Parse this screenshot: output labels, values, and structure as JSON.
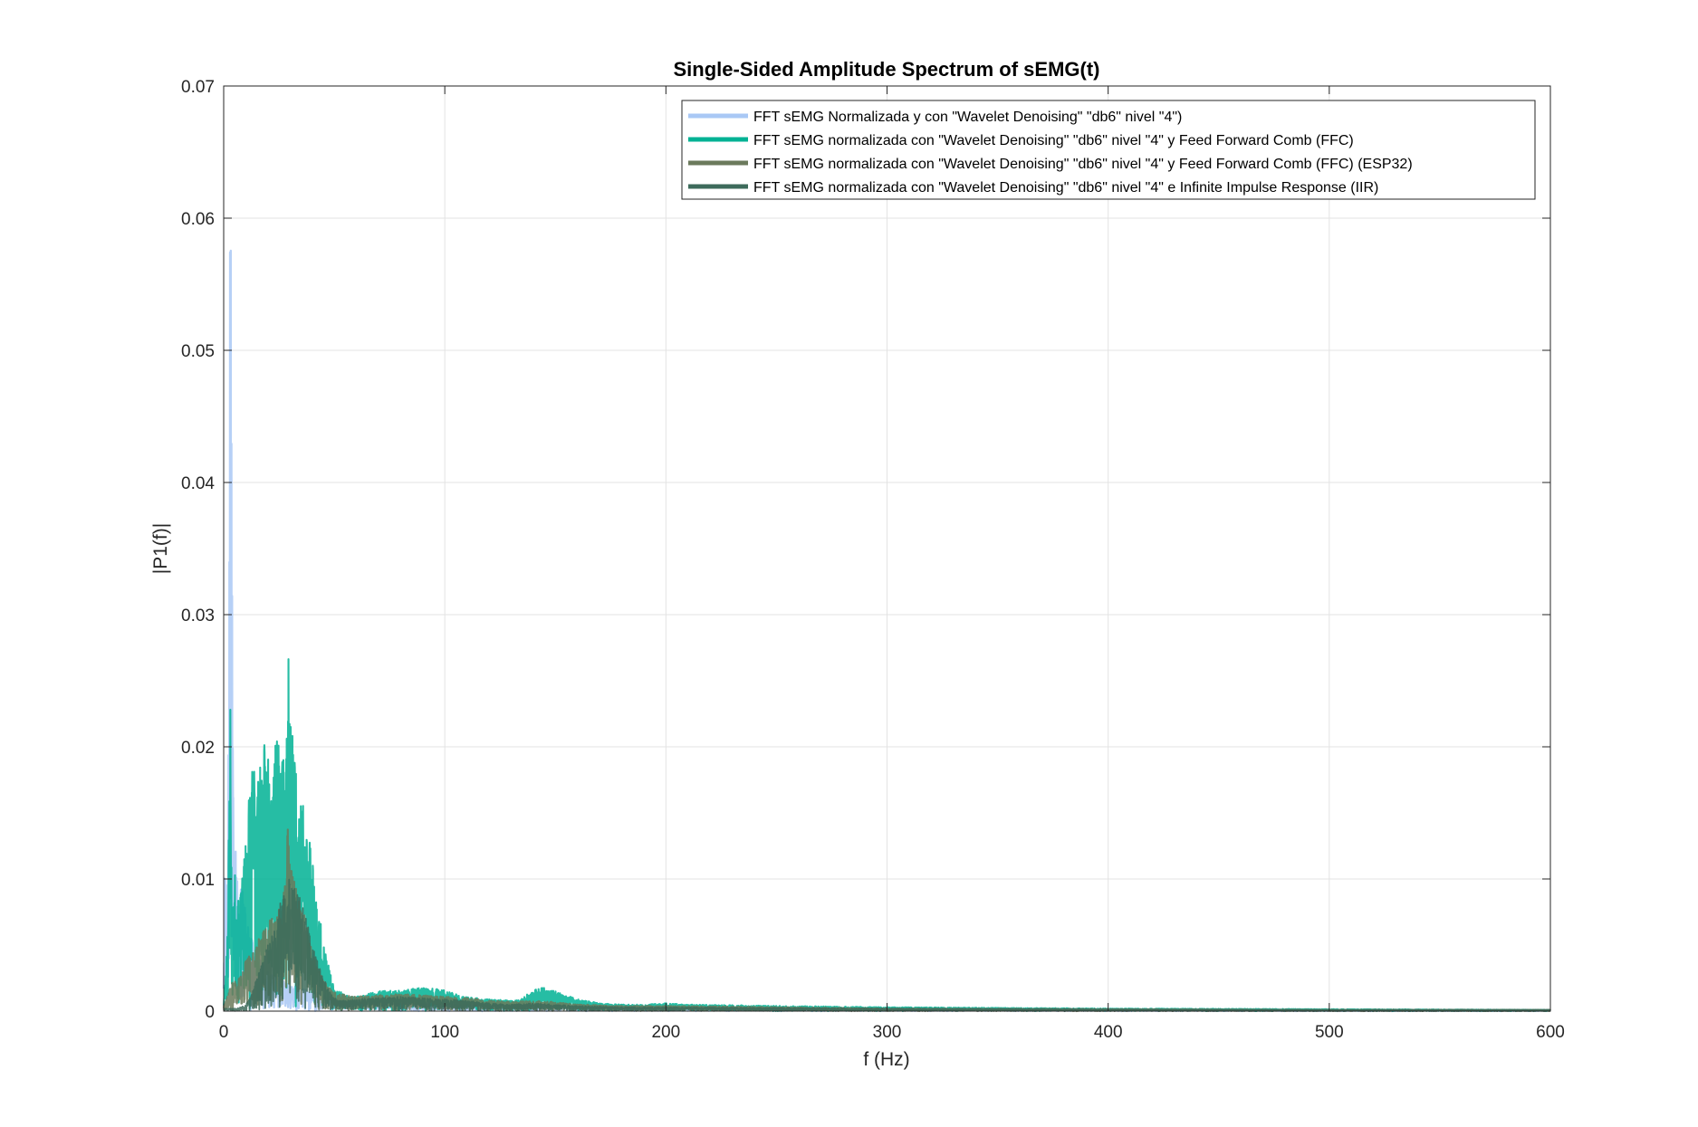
{
  "chart_data": {
    "type": "line",
    "title": "Single-Sided Amplitude Spectrum of sEMG(t)",
    "xlabel": "f (Hz)",
    "ylabel": "|P1(f)|",
    "xlim": [
      0,
      600
    ],
    "ylim": [
      0,
      0.07
    ],
    "x_ticks": [
      0,
      100,
      200,
      300,
      400,
      500,
      600
    ],
    "y_ticks": [
      0,
      0.01,
      0.02,
      0.03,
      0.04,
      0.05,
      0.06,
      0.07
    ],
    "x_tick_labels": [
      "0",
      "100",
      "200",
      "300",
      "400",
      "500",
      "600"
    ],
    "y_tick_labels": [
      "0",
      "0.01",
      "0.02",
      "0.03",
      "0.04",
      "0.05",
      "0.06",
      "0.07"
    ],
    "grid": true,
    "box": true,
    "legend_position": "top-right",
    "series": [
      {
        "name": "FFT sEMG Normalizada y con \"Wavelet Denoising\" \"db6\" nivel \"4\")",
        "color": "#a9c8f5",
        "envelope": [
          [
            0,
            0.004
          ],
          [
            0.6,
            0.0125
          ],
          [
            1,
            0.011
          ],
          [
            1.5,
            0.006
          ],
          [
            2,
            0.009
          ],
          [
            2.5,
            0.043
          ],
          [
            3,
            0.0645
          ],
          [
            3.5,
            0.05
          ],
          [
            4,
            0.024
          ],
          [
            4.5,
            0.012
          ],
          [
            5,
            0.014
          ],
          [
            5.5,
            0.0143
          ],
          [
            6,
            0.01
          ],
          [
            7,
            0.0085
          ],
          [
            8,
            0.0095
          ],
          [
            9,
            0.0088
          ],
          [
            10,
            0.0075
          ],
          [
            12,
            0.006
          ],
          [
            14,
            0.005
          ],
          [
            16,
            0.004
          ],
          [
            18,
            0.0035
          ],
          [
            20,
            0.003
          ],
          [
            25,
            0.0025
          ],
          [
            30,
            0.002
          ],
          [
            40,
            0.0015
          ],
          [
            50,
            0.001
          ],
          [
            60,
            0.0008
          ],
          [
            80,
            0.0006
          ],
          [
            100,
            0.0005
          ],
          [
            150,
            0.0004
          ],
          [
            200,
            0.0003
          ],
          [
            300,
            0.0002
          ],
          [
            400,
            0.00015
          ],
          [
            500,
            0.0001
          ],
          [
            600,
            0.0001
          ]
        ]
      },
      {
        "name": "FFT sEMG normalizada con \"Wavelet Denoising\" \"db6\" nivel \"4\" y Feed Forward Comb (FFC)",
        "color": "#00b294",
        "envelope": [
          [
            0,
            0.001
          ],
          [
            1,
            0.003
          ],
          [
            2,
            0.009
          ],
          [
            3,
            0.025
          ],
          [
            3.5,
            0.012
          ],
          [
            4,
            0.006
          ],
          [
            5,
            0.011
          ],
          [
            6,
            0.008
          ],
          [
            8,
            0.0092
          ],
          [
            10,
            0.0135
          ],
          [
            12,
            0.018
          ],
          [
            14,
            0.0195
          ],
          [
            16,
            0.018
          ],
          [
            18,
            0.02
          ],
          [
            20,
            0.0212
          ],
          [
            22,
            0.0198
          ],
          [
            24,
            0.0205
          ],
          [
            26,
            0.0215
          ],
          [
            28,
            0.0195
          ],
          [
            29,
            0.0278
          ],
          [
            30,
            0.024
          ],
          [
            32,
            0.0198
          ],
          [
            34,
            0.0175
          ],
          [
            36,
            0.016
          ],
          [
            38,
            0.0145
          ],
          [
            40,
            0.012
          ],
          [
            42,
            0.009
          ],
          [
            44,
            0.0065
          ],
          [
            46,
            0.0045
          ],
          [
            48,
            0.003
          ],
          [
            50,
            0.0018
          ],
          [
            55,
            0.0012
          ],
          [
            60,
            0.0011
          ],
          [
            70,
            0.0015
          ],
          [
            80,
            0.0016
          ],
          [
            90,
            0.0018
          ],
          [
            100,
            0.0016
          ],
          [
            105,
            0.0013
          ],
          [
            110,
            0.0011
          ],
          [
            120,
            0.0009
          ],
          [
            130,
            0.0008
          ],
          [
            135,
            0.001
          ],
          [
            140,
            0.0016
          ],
          [
            145,
            0.0018
          ],
          [
            150,
            0.0015
          ],
          [
            160,
            0.0009
          ],
          [
            170,
            0.0006
          ],
          [
            180,
            0.0005
          ],
          [
            190,
            0.0005
          ],
          [
            200,
            0.0006
          ],
          [
            210,
            0.0005
          ],
          [
            250,
            0.0004
          ],
          [
            300,
            0.0003
          ],
          [
            350,
            0.00025
          ],
          [
            400,
            0.0002
          ],
          [
            500,
            0.00015
          ],
          [
            600,
            0.0001
          ]
        ]
      },
      {
        "name": "FFT sEMG normalizada con \"Wavelet Denoising\" \"db6\" nivel \"4\" y Feed Forward Comb (FFC) (ESP32)",
        "color": "#6b7a5c",
        "envelope": [
          [
            0,
            0.0005
          ],
          [
            2,
            0.0013
          ],
          [
            4,
            0.0022
          ],
          [
            6,
            0.0023
          ],
          [
            8,
            0.0028
          ],
          [
            10,
            0.004
          ],
          [
            12,
            0.0042
          ],
          [
            14,
            0.0046
          ],
          [
            16,
            0.0055
          ],
          [
            18,
            0.0062
          ],
          [
            20,
            0.0067
          ],
          [
            22,
            0.0072
          ],
          [
            24,
            0.0076
          ],
          [
            26,
            0.008
          ],
          [
            28,
            0.0098
          ],
          [
            29,
            0.0148
          ],
          [
            30,
            0.0115
          ],
          [
            32,
            0.0098
          ],
          [
            34,
            0.0084
          ],
          [
            36,
            0.0078
          ],
          [
            38,
            0.006
          ],
          [
            40,
            0.0045
          ],
          [
            42,
            0.0035
          ],
          [
            44,
            0.0028
          ],
          [
            46,
            0.0022
          ],
          [
            48,
            0.0018
          ],
          [
            50,
            0.0015
          ],
          [
            55,
            0.0012
          ],
          [
            60,
            0.0011
          ],
          [
            70,
            0.0012
          ],
          [
            80,
            0.0013
          ],
          [
            90,
            0.0012
          ],
          [
            100,
            0.0011
          ],
          [
            110,
            0.001
          ],
          [
            120,
            0.0008
          ],
          [
            130,
            0.0007
          ],
          [
            140,
            0.0008
          ],
          [
            150,
            0.0007
          ],
          [
            160,
            0.0005
          ],
          [
            180,
            0.0004
          ],
          [
            200,
            0.0004
          ],
          [
            250,
            0.0003
          ],
          [
            300,
            0.0002
          ],
          [
            400,
            0.00015
          ],
          [
            500,
            0.0001
          ],
          [
            600,
            0.0001
          ]
        ]
      },
      {
        "name": "FFT sEMG normalizada con \"Wavelet Denoising\" \"db6\" nivel \"4\" e Infinite Impulse Response (IIR)",
        "color": "#3d6b5b",
        "envelope": [
          [
            0,
            0.0002
          ],
          [
            5,
            0.0002
          ],
          [
            8,
            0.0003
          ],
          [
            10,
            0.0005
          ],
          [
            12,
            0.001
          ],
          [
            14,
            0.002
          ],
          [
            16,
            0.003
          ],
          [
            18,
            0.004
          ],
          [
            20,
            0.005
          ],
          [
            22,
            0.006
          ],
          [
            24,
            0.0072
          ],
          [
            26,
            0.0085
          ],
          [
            28,
            0.0095
          ],
          [
            30,
            0.0102
          ],
          [
            32,
            0.0098
          ],
          [
            34,
            0.0088
          ],
          [
            36,
            0.0078
          ],
          [
            38,
            0.0065
          ],
          [
            40,
            0.0052
          ],
          [
            42,
            0.004
          ],
          [
            44,
            0.003
          ],
          [
            46,
            0.0022
          ],
          [
            48,
            0.0015
          ],
          [
            50,
            0.001
          ],
          [
            55,
            0.0008
          ],
          [
            60,
            0.0009
          ],
          [
            70,
            0.001
          ],
          [
            80,
            0.0011
          ],
          [
            90,
            0.001
          ],
          [
            100,
            0.0009
          ],
          [
            110,
            0.0008
          ],
          [
            120,
            0.0006
          ],
          [
            130,
            0.0005
          ],
          [
            140,
            0.0006
          ],
          [
            150,
            0.0005
          ],
          [
            160,
            0.0004
          ],
          [
            180,
            0.0003
          ],
          [
            200,
            0.0003
          ],
          [
            250,
            0.00025
          ],
          [
            300,
            0.0002
          ],
          [
            400,
            0.00015
          ],
          [
            500,
            0.0001
          ],
          [
            600,
            0.0001
          ]
        ]
      }
    ]
  }
}
